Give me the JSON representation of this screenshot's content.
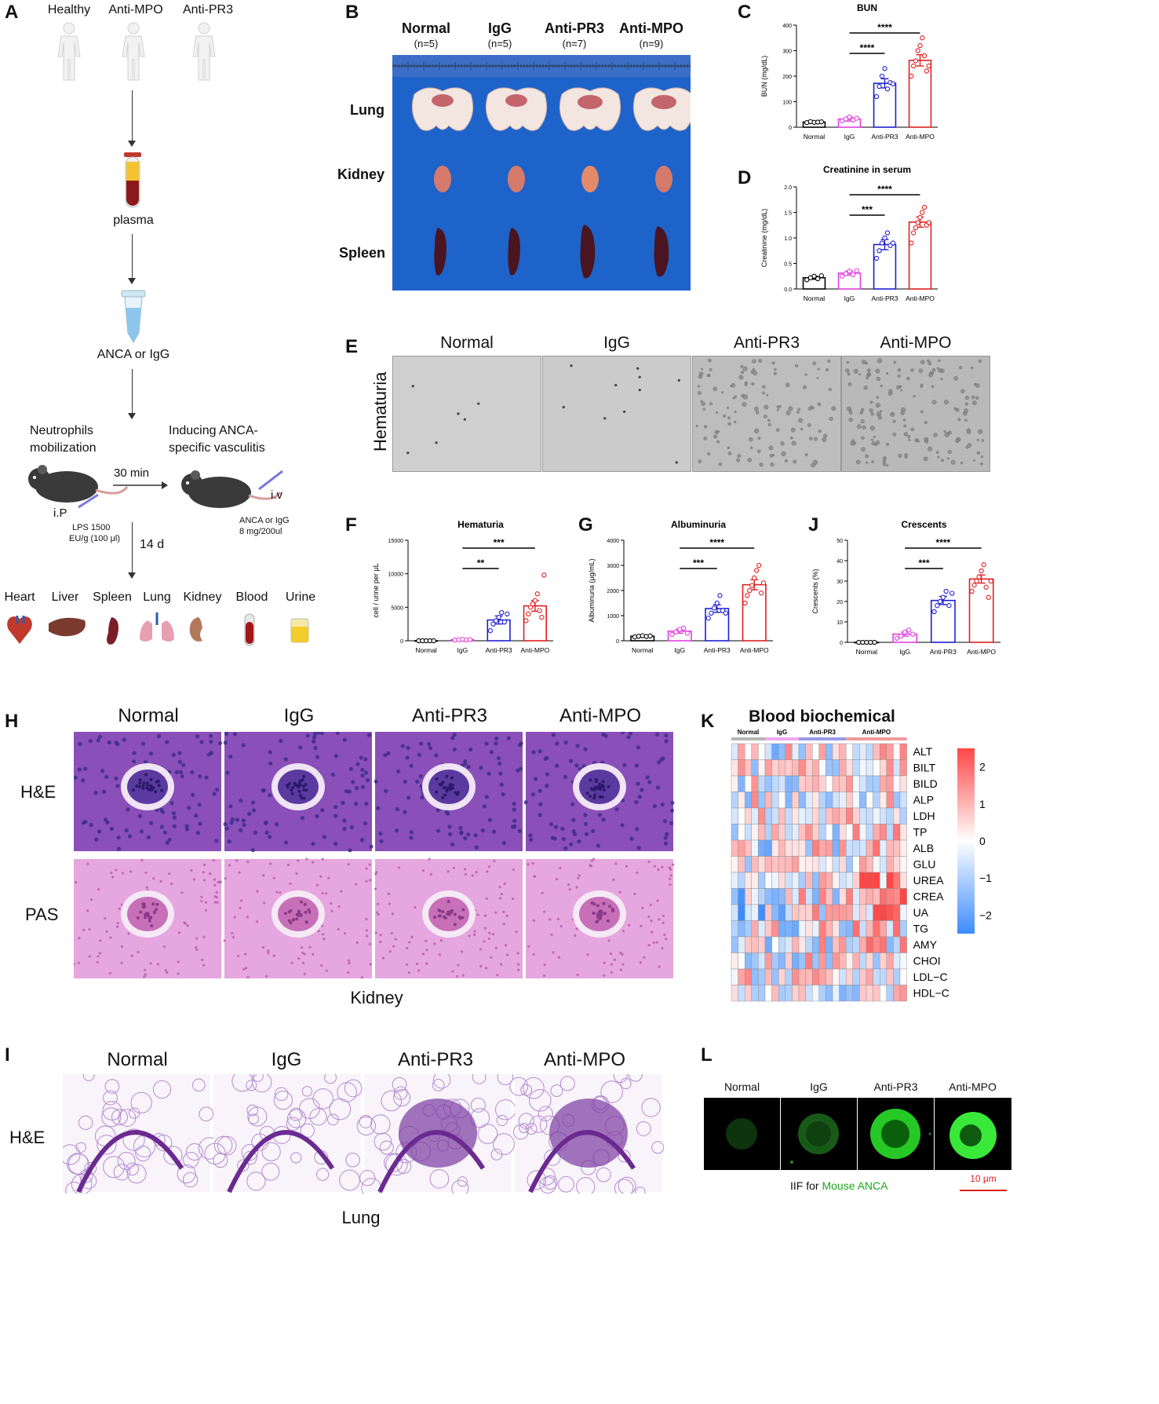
{
  "panel_letters": {
    "A": "A",
    "B": "B",
    "C": "C",
    "D": "D",
    "E": "E",
    "F": "F",
    "G": "G",
    "J": "J",
    "H": "H",
    "K": "K",
    "I": "I",
    "L": "L"
  },
  "panelA": {
    "groups": [
      "Healthy",
      "Anti-MPO",
      "Anti-PR3"
    ],
    "plasma": "plasma",
    "anca_igg": "ANCA or IgG",
    "step1_line1": "Neutrophils",
    "step1_line2": "mobilization",
    "step2_line1": "Inducing ANCA-",
    "step2_line2": "specific vasculitis",
    "time1": "30 min",
    "ip": "i.P",
    "iv": "i.v",
    "lps_line1": "LPS 1500",
    "lps_line2": "EU/g (100 μl)",
    "dose_line1": "ANCA or IgG",
    "dose_line2": "8 mg/200ul",
    "time2": "14 d",
    "organs": [
      "Heart",
      "Liver",
      "Spleen",
      "Lung",
      "Kidney",
      "Blood",
      "Urine"
    ]
  },
  "panelB": {
    "groups": [
      {
        "name": "Normal",
        "n": "(n=5)"
      },
      {
        "name": "IgG",
        "n": "(n=5)"
      },
      {
        "name": "Anti-PR3",
        "n": "(n=7)"
      },
      {
        "name": "Anti-MPO",
        "n": "(n=9)"
      }
    ],
    "rows": [
      "Lung",
      "Kidney",
      "Spleen"
    ]
  },
  "panelE": {
    "groups": [
      "Normal",
      "IgG",
      "Anti-PR3",
      "Anti-MPO"
    ],
    "row_label": "Hematuria"
  },
  "panelH": {
    "groups": [
      "Normal",
      "IgG",
      "Anti-PR3",
      "Anti-MPO"
    ],
    "rows": [
      "H&E",
      "PAS"
    ],
    "caption": "Kidney"
  },
  "panelI": {
    "groups": [
      "Normal",
      "IgG",
      "Anti-PR3",
      "Anti-MPO"
    ],
    "row_label": "H&E",
    "caption": "Lung"
  },
  "panelL": {
    "groups": [
      "Normal",
      "IgG",
      "Anti-PR3",
      "Anti-MPO"
    ],
    "caption_prefix": "IIF for ",
    "caption_highlight": "Mouse ANCA",
    "scale": "10 μm"
  },
  "colors": {
    "normal": "#000000",
    "igg": "#e040e0",
    "pr3": "#2020d0",
    "mpo": "#e02020",
    "photo_blue": "#1e63c9"
  },
  "chart_data": [
    {
      "id": "C",
      "type": "bar",
      "title": "BUN",
      "ylabel": "BUN (mg/dL)",
      "categories": [
        "Normal",
        "IgG",
        "Anti-PR3",
        "Anti-MPO"
      ],
      "values": [
        20,
        32,
        172,
        262
      ],
      "errors": [
        3,
        8,
        18,
        22
      ],
      "ylim": [
        0,
        400
      ],
      "yticks": [
        0,
        100,
        200,
        300,
        400
      ],
      "points": [
        [
          18,
          22,
          19,
          20,
          21
        ],
        [
          25,
          32,
          40,
          28,
          35
        ],
        [
          120,
          160,
          200,
          230,
          150,
          175,
          170
        ],
        [
          200,
          240,
          260,
          300,
          320,
          350,
          280,
          220,
          240
        ]
      ],
      "significance": [
        {
          "from": 1,
          "to": 2,
          "label": "****"
        },
        {
          "from": 1,
          "to": 3,
          "label": "****"
        }
      ]
    },
    {
      "id": "D",
      "type": "bar",
      "title": "Creatinine in serum",
      "ylabel": "Creatinine (mg/dL)",
      "categories": [
        "Normal",
        "IgG",
        "Anti-PR3",
        "Anti-MPO"
      ],
      "values": [
        0.22,
        0.31,
        0.87,
        1.31
      ],
      "errors": [
        0.03,
        0.04,
        0.1,
        0.1
      ],
      "ylim": [
        0,
        2.0
      ],
      "yticks": [
        0.0,
        0.5,
        1.0,
        1.5,
        2.0
      ],
      "points": [
        [
          0.18,
          0.22,
          0.25,
          0.2,
          0.26
        ],
        [
          0.25,
          0.3,
          0.35,
          0.28,
          0.36
        ],
        [
          0.6,
          0.75,
          0.9,
          1.0,
          1.1,
          0.85,
          0.9
        ],
        [
          0.9,
          1.1,
          1.2,
          1.3,
          1.4,
          1.5,
          1.6,
          1.25,
          1.3
        ]
      ],
      "significance": [
        {
          "from": 1,
          "to": 2,
          "label": "***"
        },
        {
          "from": 1,
          "to": 3,
          "label": "****"
        }
      ]
    },
    {
      "id": "F",
      "type": "bar",
      "title": "Hematuria",
      "ylabel": "cell / urine per μL",
      "categories": [
        "Normal",
        "IgG",
        "Anti-PR3",
        "Anti-MPO"
      ],
      "values": [
        0,
        150,
        3100,
        5200
      ],
      "errors": [
        0,
        50,
        600,
        800
      ],
      "ylim": [
        0,
        15000
      ],
      "yticks": [
        0,
        5000,
        10000,
        15000
      ],
      "points": [
        [
          0,
          0,
          0,
          0,
          0
        ],
        [
          100,
          150,
          200,
          120,
          180
        ],
        [
          1500,
          2500,
          3000,
          3500,
          4200,
          2800,
          4000
        ],
        [
          3000,
          4000,
          5000,
          5500,
          6000,
          7000,
          4500,
          3500,
          9800
        ]
      ],
      "significance": [
        {
          "from": 1,
          "to": 2,
          "label": "**"
        },
        {
          "from": 1,
          "to": 3,
          "label": "***"
        }
      ]
    },
    {
      "id": "G",
      "type": "bar",
      "title": "Albuminuria",
      "ylabel": "Albuminuria (μg/mL)",
      "categories": [
        "Normal",
        "IgG",
        "Anti-PR3",
        "Anti-MPO"
      ],
      "values": [
        180,
        380,
        1280,
        2230
      ],
      "errors": [
        20,
        80,
        150,
        200
      ],
      "ylim": [
        0,
        4000
      ],
      "yticks": [
        0,
        1000,
        2000,
        3000,
        4000
      ],
      "points": [
        [
          150,
          180,
          200,
          170,
          190
        ],
        [
          250,
          350,
          450,
          500,
          300
        ],
        [
          900,
          1100,
          1300,
          1500,
          1800,
          1200,
          1100
        ],
        [
          1500,
          1800,
          2000,
          2200,
          2500,
          2800,
          3000,
          1900,
          2300
        ]
      ],
      "significance": [
        {
          "from": 1,
          "to": 2,
          "label": "***"
        },
        {
          "from": 1,
          "to": 3,
          "label": "****"
        }
      ]
    },
    {
      "id": "J",
      "type": "bar",
      "title": "Crescents",
      "ylabel": "Crescents (%)",
      "categories": [
        "Normal",
        "IgG",
        "Anti-PR3",
        "Anti-MPO"
      ],
      "values": [
        0,
        4,
        20.5,
        31
      ],
      "errors": [
        0,
        1,
        2,
        2
      ],
      "ylim": [
        0,
        50
      ],
      "yticks": [
        0,
        10,
        20,
        30,
        40,
        50
      ],
      "points": [
        [
          0,
          0,
          0,
          0,
          0
        ],
        [
          2,
          3,
          5,
          6,
          4
        ],
        [
          15,
          18,
          20,
          22,
          25,
          18,
          24
        ],
        [
          25,
          28,
          30,
          32,
          35,
          38,
          27,
          22,
          30
        ]
      ],
      "significance": [
        {
          "from": 1,
          "to": 2,
          "label": "***"
        },
        {
          "from": 1,
          "to": 3,
          "label": "****"
        }
      ]
    },
    {
      "id": "K",
      "type": "heatmap",
      "title": "Blood biochemical",
      "column_groups": [
        {
          "name": "Normal",
          "count": 5
        },
        {
          "name": "IgG",
          "count": 5
        },
        {
          "name": "Anti-PR3",
          "count": 7
        },
        {
          "name": "Anti-MPO",
          "count": 9
        }
      ],
      "rows": [
        "ALT",
        "BILT",
        "BILD",
        "ALP",
        "LDH",
        "TP",
        "ALB",
        "GLU",
        "UREA",
        "CREA",
        "UA",
        "TG",
        "AMY",
        "CHOI",
        "LDL−C",
        "HDL−C"
      ],
      "colorbar_ticks": [
        "2",
        "1",
        "0",
        "−1",
        "−2"
      ],
      "colorbar_range": [
        -2.5,
        2.5
      ]
    }
  ]
}
